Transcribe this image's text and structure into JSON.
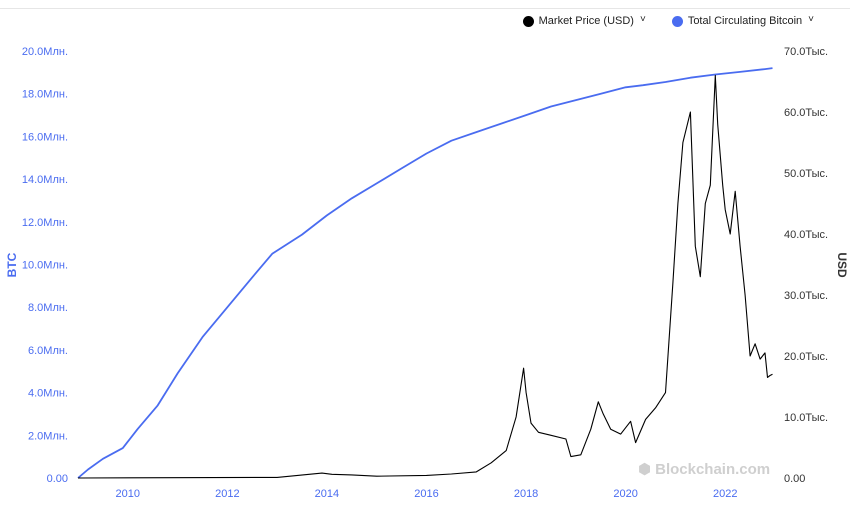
{
  "legend": {
    "price_label": "Market Price (USD)",
    "supply_label": "Total Circulating Bitcoin",
    "price_color": "#000000",
    "supply_color": "#4a6cf0",
    "chevron_icon": "chevron-down-icon"
  },
  "watermark": {
    "text": "Blockchain.com",
    "icon": "blockchain-logo-icon"
  },
  "chart_data": {
    "type": "line",
    "left_axis": {
      "title": "BTC",
      "range": [
        0,
        20000000
      ],
      "ticks": [
        "0.00",
        "2.0Млн.",
        "4.0Млн.",
        "6.0Млн.",
        "8.0Млн.",
        "10.0Млн.",
        "12.0Млн.",
        "14.0Млн.",
        "16.0Млн.",
        "18.0Млн.",
        "20.0Млн."
      ]
    },
    "right_axis": {
      "title": "USD",
      "range": [
        0,
        70000
      ],
      "ticks": [
        "0.00",
        "10.0Тыс.",
        "20.0Тыс.",
        "30.0Тыс.",
        "40.0Тыс.",
        "50.0Тыс.",
        "60.0Тыс.",
        "70.0Тыс."
      ]
    },
    "x_axis": {
      "range": [
        2009.0,
        2023.0
      ],
      "ticks": [
        "2010",
        "2012",
        "2014",
        "2016",
        "2018",
        "2020",
        "2022"
      ]
    },
    "grid": false,
    "legend_position": "top-right",
    "series": [
      {
        "name": "Total Circulating Bitcoin",
        "axis": "left",
        "color": "#4a6cf0",
        "x": [
          2009.0,
          2009.2,
          2009.5,
          2009.9,
          2010.2,
          2010.6,
          2011.0,
          2011.5,
          2012.0,
          2012.5,
          2012.9,
          2013.5,
          2014.0,
          2014.5,
          2015.0,
          2015.5,
          2016.0,
          2016.5,
          2017.0,
          2017.5,
          2018.0,
          2018.5,
          2019.0,
          2019.5,
          2020.0,
          2020.35,
          2020.8,
          2021.3,
          2021.8,
          2022.3,
          2022.8,
          2022.95
        ],
        "values": [
          0,
          400000,
          900000,
          1400000,
          2300000,
          3400000,
          4900000,
          6600000,
          8000000,
          9400000,
          10500000,
          11400000,
          12300000,
          13100000,
          13800000,
          14500000,
          15200000,
          15800000,
          16200000,
          16600000,
          17000000,
          17400000,
          17700000,
          18000000,
          18300000,
          18400000,
          18550000,
          18750000,
          18900000,
          19020000,
          19150000,
          19200000
        ]
      },
      {
        "name": "Market Price (USD)",
        "axis": "right",
        "color": "#000000",
        "x": [
          2009.0,
          2013.0,
          2013.9,
          2014.1,
          2014.5,
          2015.0,
          2016.0,
          2016.5,
          2017.0,
          2017.3,
          2017.6,
          2017.8,
          2017.95,
          2018.0,
          2018.1,
          2018.25,
          2018.5,
          2018.8,
          2018.9,
          2019.1,
          2019.3,
          2019.45,
          2019.55,
          2019.7,
          2019.9,
          2020.1,
          2020.2,
          2020.4,
          2020.6,
          2020.8,
          2020.95,
          2021.05,
          2021.15,
          2021.3,
          2021.4,
          2021.5,
          2021.6,
          2021.7,
          2021.8,
          2021.85,
          2021.95,
          2022.0,
          2022.1,
          2022.2,
          2022.3,
          2022.4,
          2022.5,
          2022.6,
          2022.7,
          2022.8,
          2022.85,
          2022.9,
          2022.95
        ],
        "values": [
          0,
          100,
          800,
          600,
          500,
          300,
          420,
          650,
          1000,
          2500,
          4500,
          10000,
          18000,
          14000,
          9000,
          7500,
          7000,
          6400,
          3500,
          3800,
          8000,
          12500,
          10500,
          8000,
          7200,
          9300,
          5800,
          9600,
          11500,
          14000,
          32000,
          45000,
          55000,
          60000,
          38000,
          33000,
          45000,
          48000,
          66000,
          58000,
          48000,
          44000,
          40000,
          47000,
          38000,
          30000,
          20000,
          22000,
          19500,
          20500,
          16500,
          16800,
          17000
        ]
      }
    ]
  }
}
